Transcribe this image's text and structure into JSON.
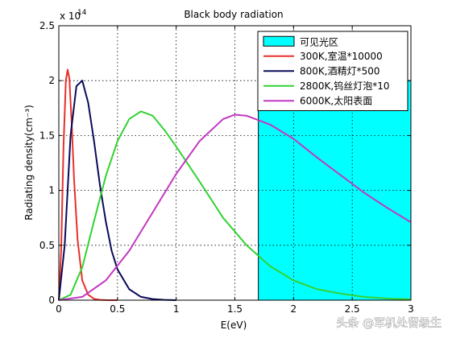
{
  "chart_data": {
    "type": "line",
    "title": "Black body radiation",
    "xlabel": "E(eV)",
    "ylabel": "Radiating density(cm⁻³)",
    "y_multiplier_label": "x 10",
    "y_multiplier_exponent": "14",
    "xlim": [
      0,
      3
    ],
    "ylim": [
      0,
      2.5
    ],
    "grid": true,
    "legend_position": "top-right",
    "x_ticks": [
      0,
      0.5,
      1,
      1.5,
      2,
      2.5,
      3
    ],
    "x_tick_labels": [
      "0",
      "0.5",
      "1",
      "1.5",
      "2",
      "2.5",
      "3"
    ],
    "y_ticks": [
      0,
      0.5,
      1,
      1.5,
      2,
      2.5
    ],
    "y_tick_labels": [
      "0",
      "0.5",
      "1",
      "1.5",
      "2",
      "2.5"
    ],
    "visible_band": {
      "name": "可见光区",
      "x_start": 1.7,
      "x_end": 3,
      "height": 2,
      "color": "#00ffff"
    },
    "series": [
      {
        "name": "300K,室温*10000",
        "color": "#e8302a",
        "x": [
          0,
          0.02,
          0.04,
          0.06,
          0.075,
          0.09,
          0.11,
          0.13,
          0.16,
          0.2,
          0.25,
          0.3,
          0.35,
          0.4,
          0.5
        ],
        "values": [
          0,
          0.45,
          1.4,
          2.0,
          2.1,
          2.02,
          1.6,
          1.1,
          0.55,
          0.18,
          0.05,
          0.012,
          0.003,
          0.001,
          0
        ]
      },
      {
        "name": "800K,酒精灯*500",
        "color": "#0a0a5a",
        "x": [
          0,
          0.05,
          0.1,
          0.15,
          0.2,
          0.25,
          0.3,
          0.35,
          0.4,
          0.45,
          0.5,
          0.6,
          0.7,
          0.8,
          0.9,
          1.0
        ],
        "values": [
          0,
          0.5,
          1.5,
          1.95,
          2.0,
          1.8,
          1.45,
          1.05,
          0.72,
          0.45,
          0.28,
          0.1,
          0.03,
          0.01,
          0.003,
          0
        ]
      },
      {
        "name": "2800K,钨丝灯泡*10",
        "color": "#33d233",
        "x": [
          0,
          0.1,
          0.2,
          0.3,
          0.4,
          0.5,
          0.6,
          0.7,
          0.8,
          0.9,
          1.0,
          1.2,
          1.4,
          1.6,
          1.8,
          2.0,
          2.2,
          2.4,
          2.6,
          2.8,
          3.0
        ],
        "values": [
          0,
          0.05,
          0.3,
          0.72,
          1.13,
          1.45,
          1.65,
          1.72,
          1.68,
          1.55,
          1.4,
          1.08,
          0.75,
          0.5,
          0.31,
          0.18,
          0.1,
          0.06,
          0.03,
          0.015,
          0.008
        ]
      },
      {
        "name": "6000K,太阳表面",
        "color": "#c238c2",
        "x": [
          0,
          0.2,
          0.4,
          0.6,
          0.8,
          1.0,
          1.2,
          1.4,
          1.5,
          1.6,
          1.8,
          2.0,
          2.2,
          2.4,
          2.6,
          2.8,
          3.0
        ],
        "values": [
          0,
          0.03,
          0.18,
          0.45,
          0.8,
          1.15,
          1.45,
          1.65,
          1.69,
          1.68,
          1.6,
          1.47,
          1.3,
          1.14,
          0.98,
          0.84,
          0.71
        ]
      }
    ]
  },
  "watermark": "头条 @军机处留级生"
}
